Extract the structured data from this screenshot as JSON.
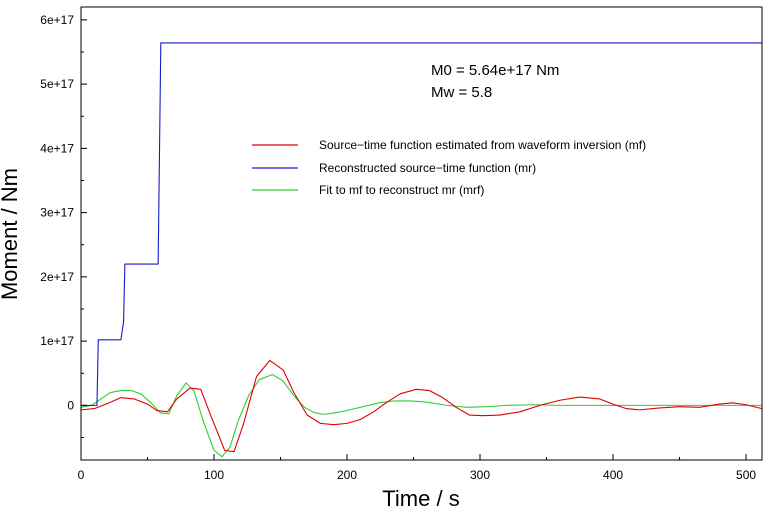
{
  "chart_data": {
    "type": "line",
    "xlabel": "Time / s",
    "ylabel": "Moment / Nm",
    "xlim": [
      0,
      512
    ],
    "ylim": [
      -8.5e+16,
      6.2e+17
    ],
    "x_ticks": [
      0,
      100,
      200,
      300,
      400,
      500
    ],
    "x_tick_labels": [
      "0",
      "100",
      "200",
      "300",
      "400",
      "500"
    ],
    "y_ticks": [
      0,
      1e+17,
      2e+17,
      3e+17,
      4e+17,
      5e+17,
      6e+17
    ],
    "y_tick_labels": [
      "0",
      "1e+17",
      "2e+17",
      "3e+17",
      "4e+17",
      "5e+17",
      "6e+17"
    ],
    "grid": false,
    "legend_position": "upper-right",
    "annotations": [
      "M0 = 5.64e+17 Nm",
      "Mw = 5.8"
    ],
    "series": [
      {
        "name": "Source−time function estimated from waveform inversion (mf)",
        "color": "#e00000",
        "x": [
          0,
          10,
          20,
          30,
          40,
          50,
          57,
          65,
          72,
          82,
          90,
          98,
          108,
          115,
          122,
          132,
          142,
          152,
          160,
          170,
          180,
          190,
          200,
          210,
          220,
          230,
          240,
          252,
          262,
          272,
          282,
          292,
          302,
          315,
          330,
          345,
          360,
          375,
          390,
          400,
          410,
          420,
          435,
          450,
          465,
          480,
          490,
          500,
          512
        ],
        "y": [
          -7000000000000000.0,
          -5000000000000000.0,
          3000000000000000.0,
          1.2e+16,
          1e+16,
          2000000000000000.0,
          -8000000000000000.0,
          -1e+16,
          1e+16,
          2.7e+16,
          2.5e+16,
          -1.8e+16,
          -7e+16,
          -7.2e+16,
          -3e+16,
          4.5e+16,
          7e+16,
          5.5e+16,
          2e+16,
          -1.5e+16,
          -2.8e+16,
          -3e+16,
          -2.8e+16,
          -2.2e+16,
          -1e+16,
          5000000000000000.0,
          1.8e+16,
          2.5e+16,
          2.3e+16,
          1.2e+16,
          -3000000000000000.0,
          -1.5e+16,
          -1.6e+16,
          -1.5e+16,
          -1e+16,
          0,
          8000000000000000.0,
          1.3e+16,
          1e+16,
          2000000000000000.0,
          -5000000000000000.0,
          -7000000000000000.0,
          -4000000000000000.0,
          -2000000000000000.0,
          -3000000000000000.0,
          2000000000000000.0,
          4000000000000000.0,
          1000000000000000.0,
          -5000000000000000.0
        ]
      },
      {
        "name": "Reconstructed source−time function (mr)",
        "color": "#1a1acc",
        "x": [
          0,
          12,
          13,
          30,
          32,
          33,
          58,
          60,
          512
        ],
        "y": [
          0,
          0,
          1.02e+17,
          1.02e+17,
          1.3e+17,
          2.2e+17,
          2.2e+17,
          5.64e+17,
          5.64e+17
        ]
      },
      {
        "name": "Fit to mf to reconstruct mr (mrf)",
        "color": "#33cc33",
        "x": [
          0,
          8,
          15,
          22,
          30,
          38,
          45,
          52,
          60,
          66,
          72,
          79,
          85,
          92,
          100,
          106,
          112,
          118,
          126,
          134,
          144,
          152,
          160,
          168,
          175,
          182,
          190,
          200,
          212,
          224,
          236,
          248,
          260,
          275,
          290,
          305,
          320,
          340,
          360,
          380,
          400,
          420,
          440,
          460,
          480,
          500,
          512
        ],
        "y": [
          -3000000000000000.0,
          0,
          1e+16,
          2e+16,
          2.3e+16,
          2.3e+16,
          1.8e+16,
          5000000000000000.0,
          -1.2e+16,
          -1.3e+16,
          1.5e+16,
          3.5e+16,
          2.2e+16,
          -2.5e+16,
          -7e+16,
          -8e+16,
          -6.5e+16,
          -2.5e+16,
          1.5e+16,
          4e+16,
          4.8e+16,
          3.8e+16,
          1.5e+16,
          -3000000000000000.0,
          -1.1e+16,
          -1.4e+16,
          -1.2e+16,
          -8000000000000000.0,
          -2000000000000000.0,
          4000000000000000.0,
          7000000000000000.0,
          7000000000000000.0,
          5000000000000000.0,
          0,
          -3000000000000000.0,
          -2000000000000000.0,
          0,
          1000000000000000.0,
          0,
          0,
          0,
          0,
          0,
          0,
          0,
          0,
          0
        ]
      }
    ]
  }
}
